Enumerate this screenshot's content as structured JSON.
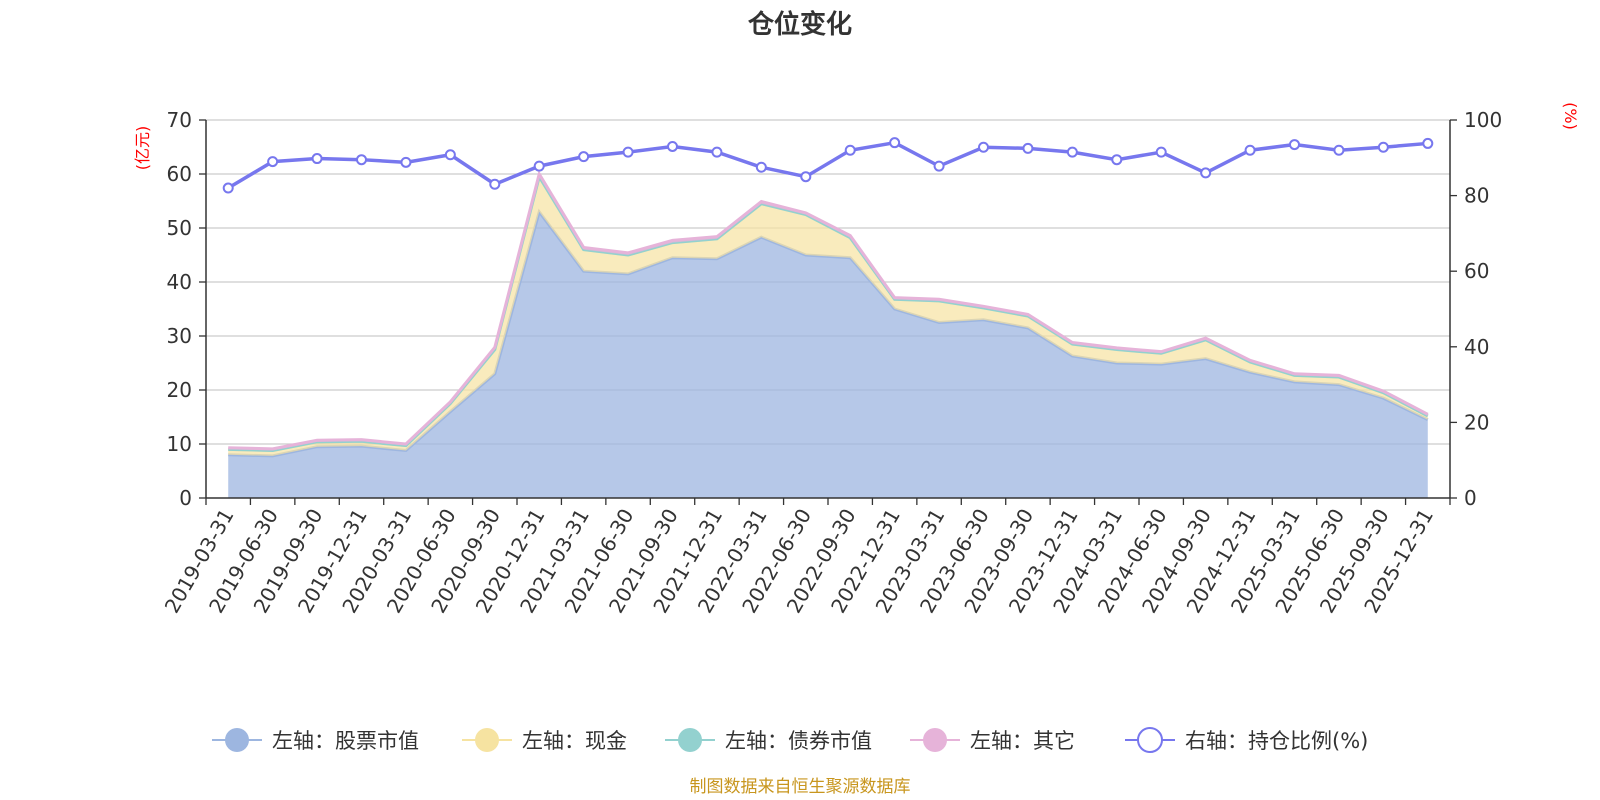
{
  "chart_data": {
    "type": "area",
    "title": "仓位变化",
    "left_unit": "(亿元)",
    "right_unit": "(%)",
    "source": "制图数据来自恒生聚源数据库",
    "left_ylim": [
      0,
      70
    ],
    "left_ticks": [
      "0",
      "10",
      "20",
      "30",
      "40",
      "50",
      "60",
      "70"
    ],
    "right_ylim": [
      0,
      100
    ],
    "right_ticks": [
      "0",
      "20",
      "40",
      "60",
      "80",
      "100"
    ],
    "grid": true,
    "legend_position": "bottom",
    "categories": [
      "2019-03-31",
      "2019-06-30",
      "2019-09-30",
      "2019-12-31",
      "2020-03-31",
      "2020-06-30",
      "2020-09-30",
      "2020-12-31",
      "2021-03-31",
      "2021-06-30",
      "2021-09-30",
      "2021-12-31",
      "2022-03-31",
      "2022-06-30",
      "2022-09-30",
      "2022-12-31",
      "2023-03-31",
      "2023-06-30",
      "2023-09-30",
      "2023-12-31",
      "2024-03-31",
      "2024-06-30",
      "2024-09-30",
      "2024-12-31",
      "2025-03-31",
      "2025-06-30",
      "2025-09-30",
      "2025-12-31"
    ],
    "series": [
      {
        "name": "左轴：股票市值",
        "axis": "left",
        "stack": true,
        "color": "#9db6e0",
        "values": [
          8.0,
          7.8,
          9.5,
          9.6,
          8.8,
          16.0,
          23.0,
          53.0,
          42.0,
          41.5,
          44.5,
          44.3,
          48.3,
          45.0,
          44.5,
          35.0,
          32.5,
          33.0,
          31.5,
          26.3,
          25.0,
          24.8,
          25.8,
          23.3,
          21.5,
          21.0,
          18.5,
          14.5
        ]
      },
      {
        "name": "左轴：现金",
        "axis": "left",
        "stack": true,
        "color": "#f6e3a1",
        "values": [
          1.0,
          1.0,
          0.9,
          0.9,
          0.9,
          1.5,
          4.5,
          6.5,
          4.0,
          3.5,
          2.8,
          3.7,
          6.2,
          7.5,
          3.7,
          1.8,
          4.0,
          2.2,
          2.2,
          2.2,
          2.5,
          2.0,
          3.5,
          1.9,
          1.2,
          1.4,
          1.0,
          0.7
        ]
      },
      {
        "name": "左轴：债券市值",
        "axis": "left",
        "stack": true,
        "color": "#93d1cf",
        "values": [
          0,
          0,
          0,
          0,
          0,
          0,
          0,
          0,
          0,
          0,
          0,
          0,
          0,
          0,
          0,
          0,
          0,
          0,
          0,
          0,
          0,
          0,
          0,
          0,
          0,
          0,
          0,
          0
        ]
      },
      {
        "name": "左轴：其它",
        "axis": "left",
        "stack": true,
        "color": "#e6b3d9",
        "values": [
          0.3,
          0.3,
          0.3,
          0.3,
          0.3,
          0.3,
          0.4,
          0.5,
          0.4,
          0.4,
          0.4,
          0.4,
          0.4,
          0.3,
          0.4,
          0.3,
          0.3,
          0.3,
          0.3,
          0.3,
          0.3,
          0.3,
          0.3,
          0.3,
          0.3,
          0.3,
          0.3,
          0.3
        ]
      },
      {
        "name": "右轴：持仓比例(%)",
        "axis": "right",
        "stack": false,
        "color": "#7777ee",
        "values": [
          82.0,
          89.0,
          89.8,
          89.5,
          88.8,
          90.8,
          83.0,
          87.8,
          90.3,
          91.5,
          93.0,
          91.5,
          87.5,
          85.0,
          92.0,
          94.0,
          87.8,
          92.8,
          92.5,
          91.5,
          89.5,
          91.5,
          86.0,
          92.0,
          93.5,
          92.0,
          92.8,
          93.8
        ]
      }
    ]
  }
}
